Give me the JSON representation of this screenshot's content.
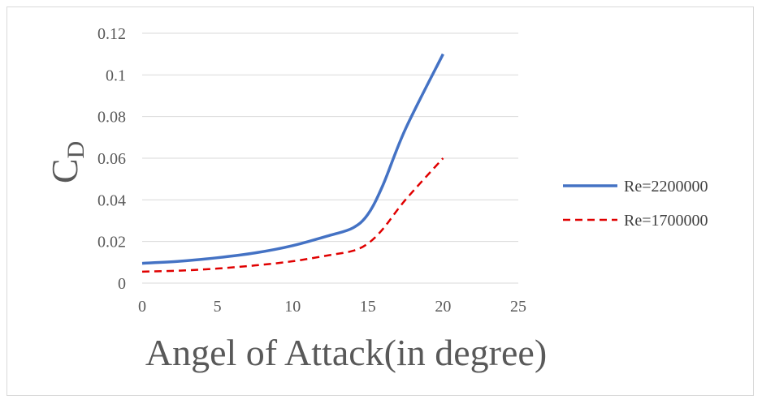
{
  "chart_data": {
    "type": "line",
    "title": "",
    "xlabel": "Angel of Attack(in degree)",
    "ylabel_main": "C",
    "ylabel_sub": "D",
    "xlim": [
      0,
      25
    ],
    "ylim": [
      0,
      0.12
    ],
    "x_ticks": [
      "0",
      "5",
      "10",
      "15",
      "20",
      "25"
    ],
    "y_ticks": [
      "0",
      "0.02",
      "0.04",
      "0.06",
      "0.08",
      "0.1",
      "0.12"
    ],
    "grid": true,
    "legend_position": "right",
    "series": [
      {
        "name": "Re=2200000",
        "color": "#4472C4",
        "dash": "solid",
        "x": [
          0,
          2.5,
          5,
          7.5,
          10,
          12.5,
          14,
          15,
          16,
          17.5,
          20
        ],
        "y": [
          0.0095,
          0.0105,
          0.0122,
          0.0145,
          0.018,
          0.023,
          0.0265,
          0.033,
          0.047,
          0.074,
          0.11
        ]
      },
      {
        "name": "Re=1700000",
        "color": "#E00000",
        "dash": "dashed",
        "x": [
          0,
          2.5,
          5,
          7.5,
          10,
          12.5,
          14,
          15,
          16,
          17.5,
          20
        ],
        "y": [
          0.0055,
          0.006,
          0.007,
          0.0085,
          0.0105,
          0.0135,
          0.0155,
          0.019,
          0.026,
          0.04,
          0.06
        ]
      }
    ]
  }
}
